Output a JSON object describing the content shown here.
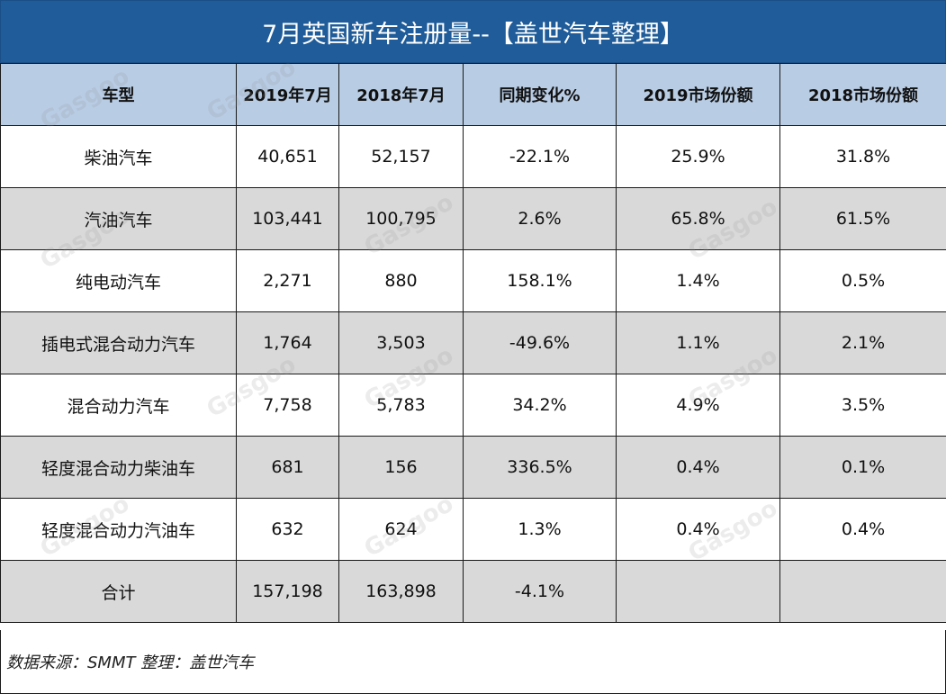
{
  "title": "7月英国新车注册量--【盖世汽车整理】",
  "headers": [
    "车型",
    "2019年7月",
    "2018年7月",
    "同期变化%",
    "2019市场份额",
    "2018市场份额"
  ],
  "rows": [
    [
      "柴油汽车",
      "40,651",
      "52,157",
      "-22.1%",
      "25.9%",
      "31.8%"
    ],
    [
      "汽油汽车",
      "103,441",
      "100,795",
      "2.6%",
      "65.8%",
      "61.5%"
    ],
    [
      "纯电动汽车",
      "2,271",
      "880",
      "158.1%",
      "1.4%",
      "0.5%"
    ],
    [
      "插电式混合动力汽车",
      "1,764",
      "3,503",
      "-49.6%",
      "1.1%",
      "2.1%"
    ],
    [
      "混合动力汽车",
      "7,758",
      "5,783",
      "34.2%",
      "4.9%",
      "3.5%"
    ],
    [
      "轻度混合动力柴油车",
      "681",
      "156",
      "336.5%",
      "0.4%",
      "0.1%"
    ],
    [
      "轻度混合动力汽油车",
      "632",
      "624",
      "1.3%",
      "0.4%",
      "0.4%"
    ],
    [
      "合计",
      "157,198",
      "163,898",
      "-4.1%",
      "",
      ""
    ]
  ],
  "footer": "数据来源：SMMT  整理：盖世汽车",
  "watermark_text": "Gasgoo",
  "colors": {
    "title_bg": "#1f5c99",
    "header_bg": "#b8cce4",
    "row_gray": "#d9d9d9",
    "row_white": "#ffffff"
  }
}
